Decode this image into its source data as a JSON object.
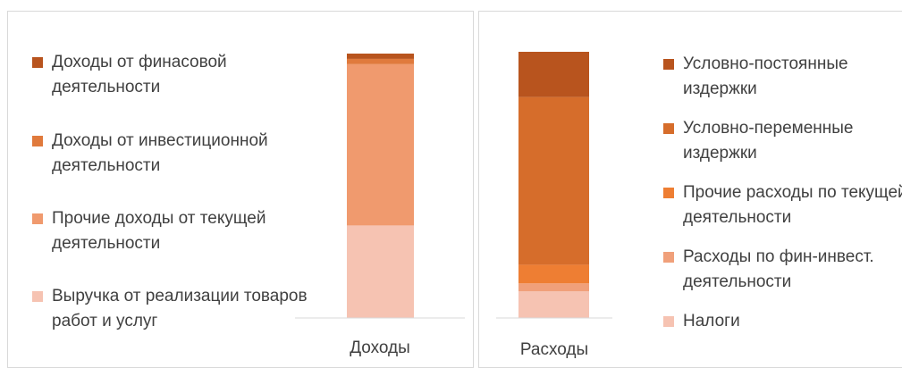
{
  "chart_data": [
    {
      "type": "bar",
      "stacked": true,
      "categories": [
        "Доходы"
      ],
      "ylim": [
        0,
        100
      ],
      "legend_position": "left",
      "series": [
        {
          "name": "Выручка от реализации товаров работ и услуг",
          "values": [
            35
          ],
          "color": "#f6c3b2"
        },
        {
          "name": "Прочие доходы от текущей деятельности",
          "values": [
            61
          ],
          "color": "#f09a6e"
        },
        {
          "name": "Доходы от инвестиционной деятельности",
          "values": [
            2
          ],
          "color": "#e07a3c"
        },
        {
          "name": "Доходы от финасовой деятельности",
          "values": [
            2
          ],
          "color": "#b8541e"
        }
      ]
    },
    {
      "type": "bar",
      "stacked": true,
      "categories": [
        "Расходы"
      ],
      "ylim": [
        0,
        100
      ],
      "legend_position": "right",
      "series": [
        {
          "name": "Налоги",
          "values": [
            10
          ],
          "color": "#f6c3b2"
        },
        {
          "name": "Расходы по фин-инвест. деятельности",
          "values": [
            3
          ],
          "color": "#f0a07a"
        },
        {
          "name": "Прочие расходы по текущей деятельности",
          "values": [
            7
          ],
          "color": "#ee7e33"
        },
        {
          "name": "Условно-переменные издержки",
          "values": [
            63
          ],
          "color": "#d66d2b"
        },
        {
          "name": "Условно-постоянные издержки",
          "values": [
            17
          ],
          "color": "#b8541e"
        }
      ]
    }
  ]
}
